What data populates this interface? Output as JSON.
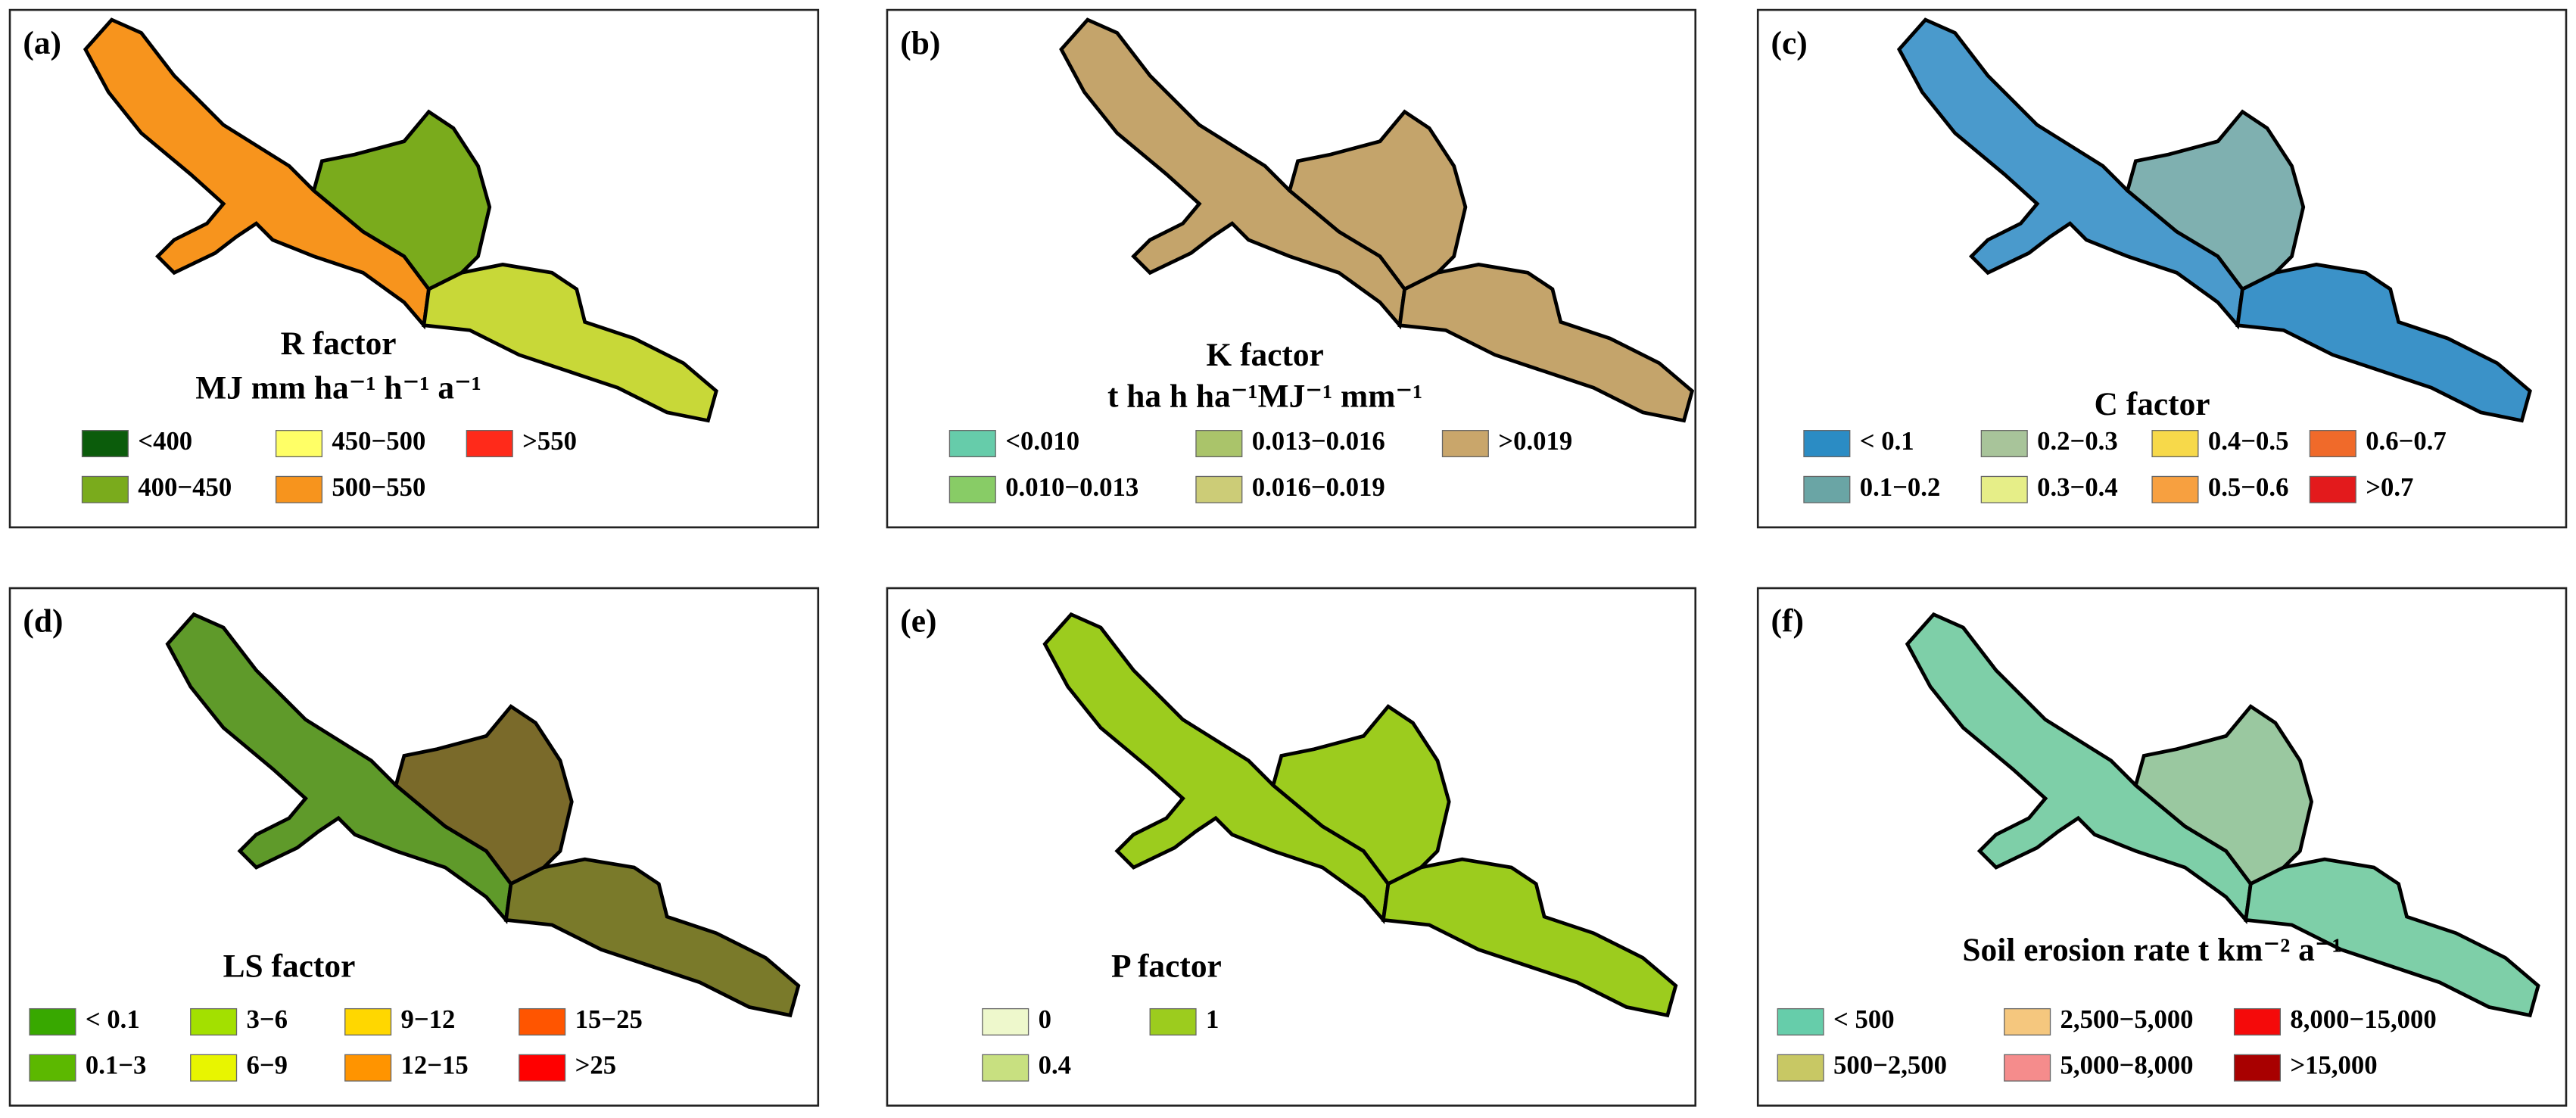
{
  "panels": [
    {
      "label": "(a)",
      "title": [
        "R factor",
        "MJ mm ha⁻¹ h⁻¹ a⁻¹"
      ],
      "legend": [
        {
          "label": "<400",
          "color": "#0b5c0b"
        },
        {
          "label": "400−450",
          "color": "#7aab1c"
        },
        {
          "label": "450−500",
          "color": "#ffff66"
        },
        {
          "label": "500−550",
          "color": "#f7941d"
        },
        {
          "label": ">550",
          "color": "#ff2a1a"
        }
      ]
    },
    {
      "label": "(b)",
      "title": [
        "K factor",
        "t ha h ha⁻¹MJ⁻¹ mm⁻¹"
      ],
      "legend": [
        {
          "label": "<0.010",
          "color": "#66ccaa"
        },
        {
          "label": "0.010−0.013",
          "color": "#88cc66"
        },
        {
          "label": "0.013−0.016",
          "color": "#aac46a"
        },
        {
          "label": "0.016−0.019",
          "color": "#cccc77"
        },
        {
          "label": ">0.019",
          "color": "#c9a66b"
        }
      ]
    },
    {
      "label": "(c)",
      "title": [
        "C factor"
      ],
      "legend": [
        {
          "label": "< 0.1",
          "color": "#2b8cc4"
        },
        {
          "label": "0.1−0.2",
          "color": "#6aa5a5"
        },
        {
          "label": "0.2−0.3",
          "color": "#a8c49a"
        },
        {
          "label": "0.3−0.4",
          "color": "#e6ee88"
        },
        {
          "label": "0.4−0.5",
          "color": "#f7d94a"
        },
        {
          "label": "0.5−0.6",
          "color": "#f7a040"
        },
        {
          "label": "0.6−0.7",
          "color": "#f06a2a"
        },
        {
          "label": ">0.7",
          "color": "#e31a1c"
        }
      ]
    },
    {
      "label": "(d)",
      "title": [
        "LS factor"
      ],
      "legend": [
        {
          "label": "< 0.1",
          "color": "#38a800"
        },
        {
          "label": "0.1−3",
          "color": "#5cb800"
        },
        {
          "label": "3−6",
          "color": "#a3e000"
        },
        {
          "label": "6−9",
          "color": "#e8f500"
        },
        {
          "label": "9−12",
          "color": "#ffd700"
        },
        {
          "label": "12−15",
          "color": "#ff9400"
        },
        {
          "label": "15−25",
          "color": "#ff5500"
        },
        {
          "label": ">25",
          "color": "#ff0000"
        }
      ]
    },
    {
      "label": "(e)",
      "title": [
        "P factor"
      ],
      "legend": [
        {
          "label": "0",
          "color": "#eef8cc"
        },
        {
          "label": "0.4",
          "color": "#c8e080"
        },
        {
          "label": "1",
          "color": "#9ccc1e"
        }
      ]
    },
    {
      "label": "(f)",
      "title": [
        "Soil erosion rate t km⁻² a⁻¹"
      ],
      "legend": [
        {
          "label": "< 500",
          "color": "#66cdaa"
        },
        {
          "label": "500−2,500",
          "color": "#c8c864"
        },
        {
          "label": "2,500−5,000",
          "color": "#f5c77e"
        },
        {
          "label": "5,000−8,000",
          "color": "#f58c8c"
        },
        {
          "label": "8,000−15,000",
          "color": "#f50a0a"
        },
        {
          "label": ">15,000",
          "color": "#a80000"
        }
      ]
    }
  ]
}
